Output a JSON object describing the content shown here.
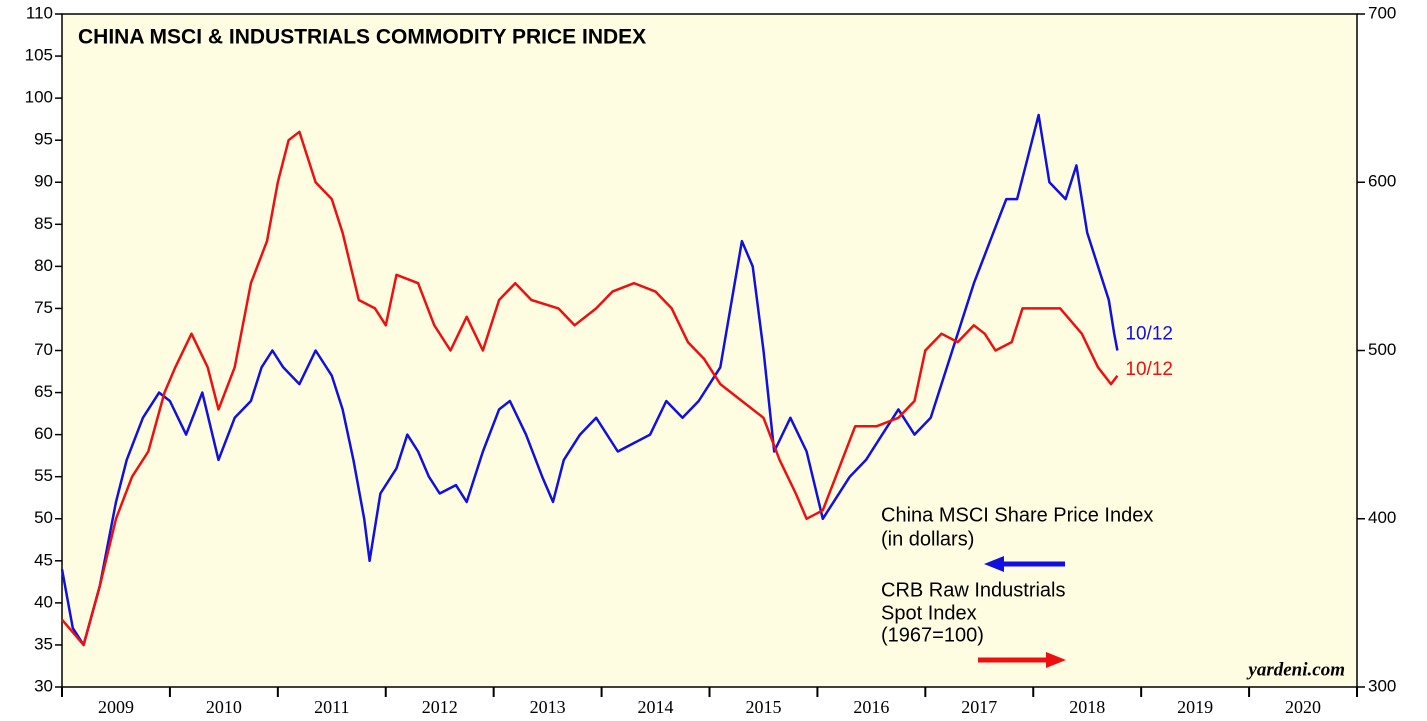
{
  "chart_data": {
    "type": "line",
    "title": "CHINA MSCI & INDUSTRIALS COMMODITY PRICE INDEX",
    "source": "yardeni.com",
    "background": "#fffde1",
    "xlim": [
      2009,
      2021
    ],
    "xticks": [
      2009,
      2010,
      2011,
      2012,
      2013,
      2014,
      2015,
      2016,
      2017,
      2018,
      2019,
      2020,
      2021
    ],
    "ylim": [
      30,
      110
    ],
    "yticks": [
      30,
      35,
      40,
      45,
      50,
      55,
      60,
      65,
      70,
      75,
      80,
      85,
      90,
      95,
      100,
      105,
      110
    ],
    "y2lim": [
      300,
      700
    ],
    "y2ticks": [
      300,
      400,
      500,
      600,
      700
    ],
    "series": [
      {
        "name": [
          "China MSCI Share Price Index",
          "(in dollars)"
        ],
        "color": "#1010e0",
        "axis": "y",
        "end_label": "10/12",
        "x": [
          2009.0,
          2009.1,
          2009.2,
          2009.35,
          2009.5,
          2009.6,
          2009.75,
          2009.9,
          2010.0,
          2010.15,
          2010.3,
          2010.45,
          2010.6,
          2010.75,
          2010.85,
          2010.95,
          2011.05,
          2011.2,
          2011.35,
          2011.5,
          2011.6,
          2011.7,
          2011.8,
          2011.85,
          2011.95,
          2012.1,
          2012.2,
          2012.3,
          2012.4,
          2012.5,
          2012.65,
          2012.75,
          2012.9,
          2013.05,
          2013.15,
          2013.3,
          2013.45,
          2013.55,
          2013.65,
          2013.8,
          2013.95,
          2014.15,
          2014.3,
          2014.45,
          2014.6,
          2014.75,
          2014.9,
          2015.1,
          2015.3,
          2015.4,
          2015.5,
          2015.6,
          2015.75,
          2015.9,
          2016.05,
          2016.15,
          2016.3,
          2016.45,
          2016.6,
          2016.75,
          2016.9,
          2017.05,
          2017.15,
          2017.3,
          2017.45,
          2017.6,
          2017.75,
          2017.85,
          2017.95,
          2018.05,
          2018.15,
          2018.3,
          2018.4,
          2018.5,
          2018.6,
          2018.7,
          2018.75,
          2018.78
        ],
        "values": [
          44,
          37,
          35,
          42,
          52,
          57,
          62,
          65,
          64,
          60,
          65,
          57,
          62,
          64,
          68,
          70,
          68,
          66,
          70,
          67,
          63,
          57,
          50,
          45,
          53,
          56,
          60,
          58,
          55,
          53,
          54,
          52,
          58,
          63,
          64,
          60,
          55,
          52,
          57,
          60,
          62,
          58,
          59,
          60,
          64,
          62,
          64,
          68,
          83,
          80,
          70,
          58,
          62,
          58,
          50,
          52,
          55,
          57,
          60,
          63,
          60,
          62,
          66,
          72,
          78,
          83,
          88,
          88,
          93,
          98,
          90,
          88,
          92,
          84,
          80,
          76,
          72,
          70
        ]
      },
      {
        "name": [
          "CRB Raw Industrials",
          "Spot Index",
          "(1967=100)"
        ],
        "color": "#ee1010",
        "axis": "y2",
        "end_label": "10/12",
        "x": [
          2009.0,
          2009.2,
          2009.35,
          2009.5,
          2009.65,
          2009.8,
          2009.95,
          2010.05,
          2010.2,
          2010.35,
          2010.45,
          2010.6,
          2010.75,
          2010.9,
          2011.0,
          2011.1,
          2011.2,
          2011.35,
          2011.5,
          2011.6,
          2011.75,
          2011.9,
          2012.0,
          2012.1,
          2012.3,
          2012.45,
          2012.6,
          2012.75,
          2012.9,
          2013.05,
          2013.2,
          2013.35,
          2013.6,
          2013.75,
          2013.95,
          2014.1,
          2014.3,
          2014.5,
          2014.65,
          2014.8,
          2014.95,
          2015.1,
          2015.3,
          2015.5,
          2015.65,
          2015.8,
          2015.9,
          2016.05,
          2016.2,
          2016.35,
          2016.55,
          2016.75,
          2016.9,
          2017.0,
          2017.15,
          2017.3,
          2017.45,
          2017.55,
          2017.65,
          2017.8,
          2017.9,
          2018.05,
          2018.25,
          2018.45,
          2018.6,
          2018.72,
          2018.78
        ],
        "values": [
          340,
          325,
          360,
          400,
          425,
          440,
          475,
          490,
          510,
          490,
          465,
          490,
          540,
          565,
          600,
          625,
          630,
          600,
          590,
          570,
          530,
          525,
          515,
          545,
          540,
          515,
          500,
          520,
          500,
          530,
          540,
          530,
          525,
          515,
          525,
          535,
          540,
          535,
          525,
          505,
          495,
          480,
          470,
          460,
          435,
          415,
          400,
          405,
          430,
          455,
          455,
          460,
          470,
          500,
          510,
          505,
          515,
          510,
          500,
          505,
          525,
          525,
          525,
          510,
          490,
          480,
          485
        ]
      }
    ]
  }
}
